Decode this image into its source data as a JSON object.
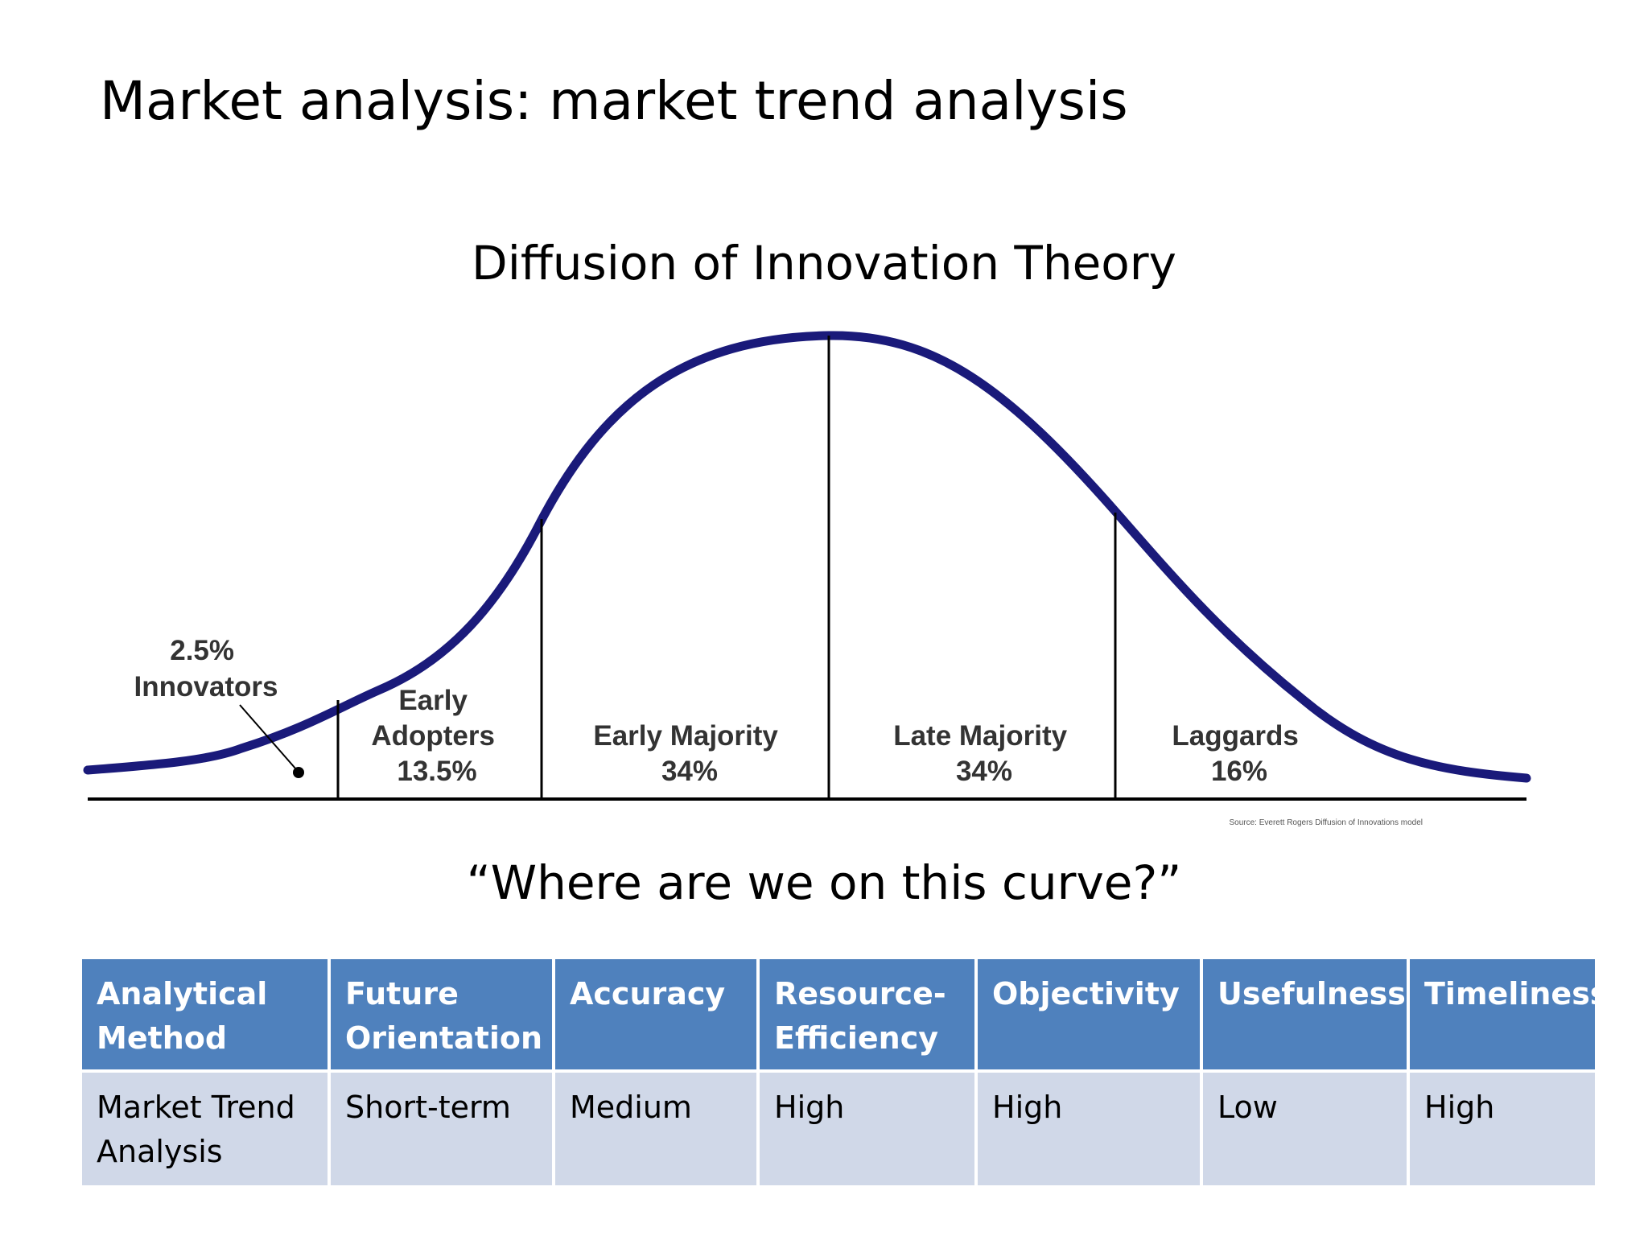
{
  "slide": {
    "title": "Market analysis: market trend analysis",
    "diagram_title": "Diffusion of Innovation Theory",
    "question": "“Where are we on this curve?”"
  },
  "curve": {
    "segments": [
      {
        "lines": [
          "2.5%",
          "Innovators"
        ]
      },
      {
        "lines": [
          "Early",
          "Adopters",
          "13.5%"
        ]
      },
      {
        "lines": [
          "Early Majority",
          "34%"
        ]
      },
      {
        "lines": [
          "Late Majority",
          "34%"
        ]
      },
      {
        "lines": [
          "Laggards",
          "16%"
        ]
      }
    ],
    "source": "Source: Everett Rogers Diffusion of Innovations model",
    "curve_color": "#1a1a7a",
    "line_color": "#000000"
  },
  "table": {
    "headers": [
      [
        "Analytical",
        "Method"
      ],
      [
        "Future",
        "Orientation"
      ],
      [
        "Accuracy"
      ],
      [
        "Resource-",
        "Efficiency"
      ],
      [
        "Objectivity"
      ],
      [
        "Usefulness"
      ],
      [
        "Timeliness"
      ]
    ],
    "rows": [
      [
        [
          "Market Trend",
          "Analysis"
        ],
        [
          "Short-term"
        ],
        [
          "Medium"
        ],
        [
          "High"
        ],
        [
          "High"
        ],
        [
          "Low"
        ],
        [
          "High"
        ]
      ]
    ],
    "header_color": "#4f81bd",
    "row_color": "#d0d8e8"
  }
}
